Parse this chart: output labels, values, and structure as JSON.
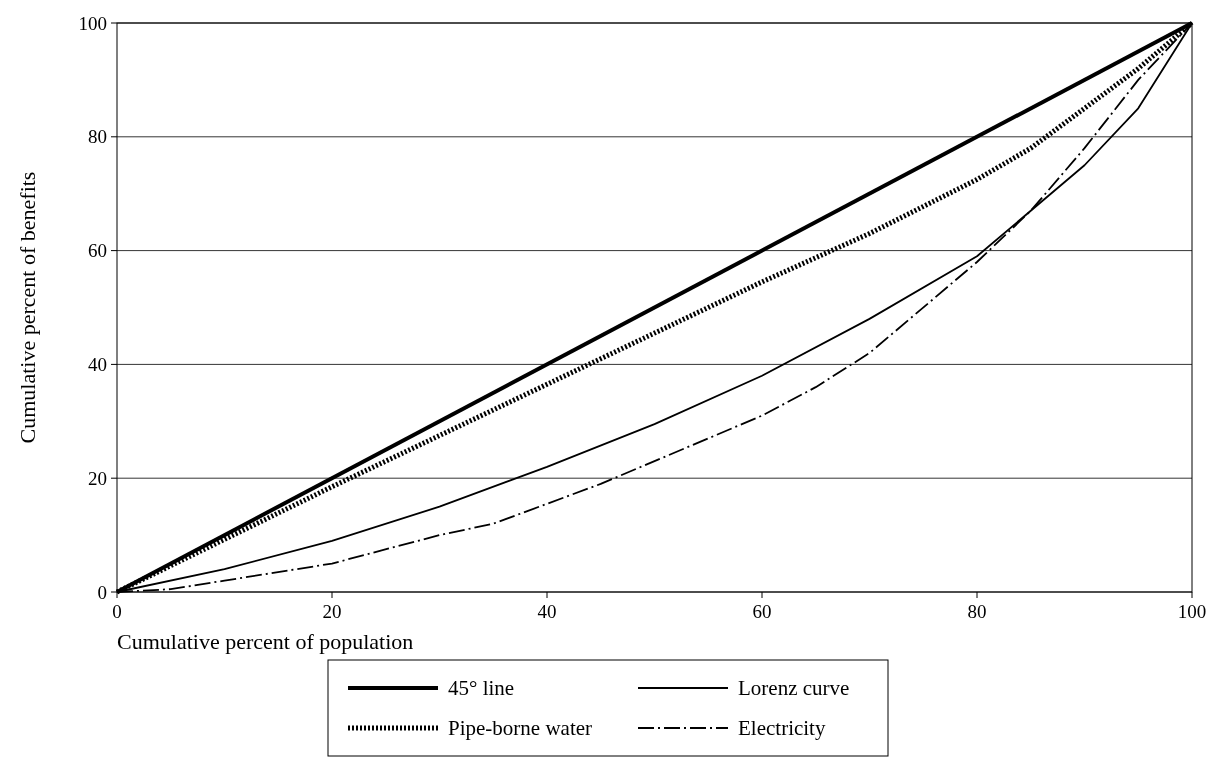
{
  "chart_data": {
    "type": "line",
    "xlabel": "Cumulative percent of population",
    "ylabel": "Cumulative percent of benefits",
    "xlim": [
      0,
      100
    ],
    "ylim": [
      0,
      100
    ],
    "xticks": [
      0,
      20,
      40,
      60,
      80,
      100
    ],
    "yticks": [
      0,
      20,
      40,
      60,
      80,
      100
    ],
    "grid": "y",
    "legend": "bottom",
    "series": [
      {
        "name": "45° line",
        "color": "#000000",
        "line_style": "solid",
        "x": [
          0,
          100
        ],
        "values": [
          0,
          100
        ]
      },
      {
        "name": "Lorenz curve",
        "color": "#000000",
        "line_style": "solid",
        "x": [
          0,
          10,
          20,
          30,
          40,
          50,
          60,
          70,
          80,
          90,
          95,
          100
        ],
        "values": [
          0,
          4,
          9,
          15,
          22,
          29.5,
          38,
          48,
          59,
          75,
          85,
          100
        ]
      },
      {
        "name": "Pipe-borne water",
        "color": "#000000",
        "line_style": "dotted",
        "x": [
          0,
          20,
          40,
          45,
          50,
          60,
          70,
          80,
          85,
          90,
          95,
          100
        ],
        "values": [
          0,
          18.5,
          36.5,
          41,
          45.5,
          54.5,
          63,
          72.5,
          78,
          85,
          92,
          100
        ]
      },
      {
        "name": "Electricity",
        "color": "#000000",
        "line_style": "dashed",
        "x": [
          0,
          5,
          10,
          20,
          30,
          35,
          40,
          45,
          50,
          60,
          65,
          70,
          80,
          85,
          90,
          95,
          100
        ],
        "values": [
          0,
          0.5,
          2,
          5,
          10,
          12,
          15.5,
          19,
          23,
          31,
          36,
          42,
          58,
          67,
          78,
          90,
          100
        ]
      }
    ]
  }
}
